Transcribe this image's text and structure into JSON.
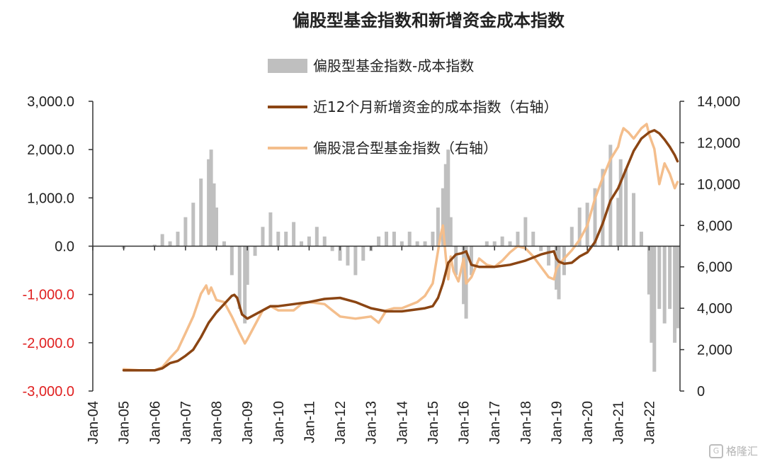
{
  "chart_data": {
    "type": "bar+line",
    "title": "偏股型基金指数和新增资金成本指数",
    "legend": {
      "placement": "top-center",
      "entries": [
        "偏股型基金指数-成本指数",
        "近12个月新增资金的成本指数（右轴）",
        "偏股混合型基金指数（右轴）"
      ]
    },
    "x_tick_labels": [
      "Jan-04",
      "Jan-05",
      "Jan-06",
      "Jan-07",
      "Jan-08",
      "Jan-09",
      "Jan-10",
      "Jan-11",
      "Jan-12",
      "Jan-13",
      "Jan-14",
      "Jan-15",
      "Jan-16",
      "Jan-17",
      "Jan-18",
      "Jan-19",
      "Jan-20",
      "Jan-21",
      "Jan-22"
    ],
    "x_range": [
      2004.0,
      2023.0
    ],
    "y_left": {
      "range": [
        -3000,
        3000
      ],
      "ticks": [
        3000,
        2000,
        1000,
        0,
        -1000,
        -2000,
        -3000
      ],
      "tick_labels": [
        "3,000.0",
        "2,000.0",
        "1,000.0",
        "0.0",
        "-1,000.0",
        "-2,000.0",
        "-3,000.0"
      ],
      "negative_label_color": "#e02020"
    },
    "y_right": {
      "range": [
        0,
        14000
      ],
      "ticks": [
        14000,
        12000,
        10000,
        8000,
        6000,
        4000,
        2000,
        0
      ],
      "tick_labels": [
        "14,000",
        "12,000",
        "10,000",
        "8,000",
        "6,000",
        "4,000",
        "2,000",
        "0"
      ]
    },
    "grid": false,
    "colors": {
      "bars": "#bfbfbf",
      "cost_index": "#8b4513",
      "fund_index": "#f4be8c"
    },
    "series": [
      {
        "name": "偏股型基金指数-成本指数",
        "type": "bar",
        "axis": "left",
        "x": [
          2005.0,
          2005.5,
          2006.0,
          2006.25,
          2006.5,
          2006.75,
          2007.0,
          2007.25,
          2007.5,
          2007.75,
          2007.83,
          2007.92,
          2008.0,
          2008.25,
          2008.5,
          2008.75,
          2008.92,
          2009.0,
          2009.25,
          2009.5,
          2009.75,
          2010.0,
          2010.25,
          2010.5,
          2010.75,
          2011.0,
          2011.25,
          2011.5,
          2011.75,
          2012.0,
          2012.25,
          2012.5,
          2012.75,
          2013.0,
          2013.25,
          2013.5,
          2013.75,
          2014.0,
          2014.25,
          2014.5,
          2014.75,
          2015.0,
          2015.17,
          2015.33,
          2015.42,
          2015.5,
          2015.58,
          2015.75,
          2016.0,
          2016.08,
          2016.25,
          2016.5,
          2016.75,
          2017.0,
          2017.25,
          2017.5,
          2017.75,
          2018.0,
          2018.25,
          2018.5,
          2018.75,
          2019.0,
          2019.08,
          2019.25,
          2019.5,
          2019.75,
          2020.0,
          2020.25,
          2020.5,
          2020.75,
          2021.0,
          2021.08,
          2021.25,
          2021.5,
          2021.75,
          2022.0,
          2022.08,
          2022.17,
          2022.33,
          2022.5,
          2022.67,
          2022.83,
          2022.92
        ],
        "values": [
          -50,
          0,
          30,
          250,
          100,
          300,
          600,
          900,
          1400,
          1800,
          2000,
          1300,
          800,
          100,
          -600,
          -1300,
          -1600,
          -800,
          -200,
          400,
          700,
          300,
          300,
          500,
          100,
          200,
          400,
          200,
          -100,
          -300,
          -400,
          -600,
          -300,
          -100,
          200,
          300,
          300,
          100,
          300,
          100,
          100,
          300,
          800,
          1200,
          1700,
          2000,
          600,
          -600,
          -1200,
          -1500,
          -600,
          0,
          100,
          100,
          200,
          100,
          300,
          600,
          300,
          -100,
          -400,
          -900,
          -1100,
          -600,
          400,
          800,
          900,
          1200,
          1600,
          2100,
          1000,
          1800,
          1600,
          1100,
          300,
          -1000,
          -2000,
          -2600,
          -1300,
          -1600,
          -1300,
          -2000,
          -1700
        ]
      },
      {
        "name": "近12个月新增资金的成本指数（右轴）",
        "type": "line",
        "axis": "right",
        "x": [
          2005.0,
          2005.5,
          2006.0,
          2006.25,
          2006.5,
          2006.75,
          2007.0,
          2007.25,
          2007.5,
          2007.75,
          2008.0,
          2008.25,
          2008.5,
          2008.58,
          2008.67,
          2008.83,
          2009.0,
          2009.25,
          2009.5,
          2009.75,
          2010.0,
          2010.5,
          2011.0,
          2011.5,
          2012.0,
          2012.5,
          2013.0,
          2013.5,
          2014.0,
          2014.5,
          2014.75,
          2015.0,
          2015.17,
          2015.33,
          2015.5,
          2015.75,
          2015.92,
          2016.0,
          2016.08,
          2016.25,
          2016.5,
          2017.0,
          2017.5,
          2018.0,
          2018.5,
          2018.75,
          2018.92,
          2019.0,
          2019.08,
          2019.25,
          2019.5,
          2019.75,
          2020.0,
          2020.25,
          2020.5,
          2020.75,
          2021.0,
          2021.25,
          2021.5,
          2021.75,
          2022.0,
          2022.17,
          2022.33,
          2022.5,
          2022.67,
          2022.83,
          2022.92
        ],
        "values": [
          1000,
          1000,
          1000,
          1100,
          1350,
          1450,
          1700,
          2000,
          2600,
          3300,
          3800,
          4200,
          4600,
          4650,
          4500,
          3700,
          3500,
          3700,
          3900,
          4100,
          4100,
          4200,
          4300,
          4450,
          4500,
          4300,
          4000,
          3850,
          3850,
          3950,
          4000,
          4100,
          4500,
          5200,
          6200,
          6600,
          6650,
          6700,
          6750,
          6100,
          6000,
          6000,
          6100,
          6300,
          6600,
          6700,
          6750,
          6400,
          6250,
          6150,
          6200,
          6500,
          6700,
          7200,
          8100,
          9200,
          9800,
          10700,
          11600,
          12200,
          12500,
          12600,
          12450,
          12150,
          11800,
          11400,
          11100
        ]
      },
      {
        "name": "偏股混合型基金指数（右轴）",
        "type": "line",
        "axis": "right",
        "x": [
          2005.0,
          2005.5,
          2006.0,
          2006.25,
          2006.5,
          2006.75,
          2007.0,
          2007.25,
          2007.5,
          2007.67,
          2007.75,
          2007.83,
          2008.0,
          2008.25,
          2008.5,
          2008.75,
          2008.92,
          2009.0,
          2009.25,
          2009.5,
          2009.75,
          2010.0,
          2010.5,
          2010.75,
          2011.0,
          2011.5,
          2011.75,
          2012.0,
          2012.5,
          2013.0,
          2013.25,
          2013.5,
          2013.75,
          2014.0,
          2014.5,
          2014.75,
          2015.0,
          2015.25,
          2015.33,
          2015.42,
          2015.5,
          2015.58,
          2015.67,
          2015.83,
          2016.0,
          2016.08,
          2016.25,
          2016.5,
          2016.75,
          2017.0,
          2017.25,
          2017.5,
          2017.75,
          2018.0,
          2018.25,
          2018.5,
          2018.75,
          2018.92,
          2019.0,
          2019.08,
          2019.25,
          2019.5,
          2019.75,
          2020.0,
          2020.25,
          2020.5,
          2020.75,
          2021.0,
          2021.08,
          2021.17,
          2021.33,
          2021.5,
          2021.75,
          2021.92,
          2022.0,
          2022.17,
          2022.33,
          2022.5,
          2022.67,
          2022.83,
          2022.92
        ],
        "values": [
          1050,
          1000,
          1000,
          1150,
          1600,
          2000,
          2800,
          3600,
          4700,
          5100,
          4700,
          5000,
          4400,
          4300,
          3600,
          2800,
          2300,
          2500,
          3200,
          3900,
          4100,
          3900,
          3900,
          4200,
          4300,
          4200,
          3900,
          3600,
          3500,
          3600,
          3300,
          3900,
          4000,
          4000,
          4300,
          4600,
          5200,
          7500,
          8000,
          6500,
          5400,
          6500,
          5800,
          5300,
          6400,
          5200,
          5500,
          6400,
          6100,
          6000,
          6300,
          6700,
          7000,
          6900,
          6500,
          6000,
          5500,
          5400,
          5900,
          6100,
          6400,
          6800,
          7300,
          8000,
          9300,
          10300,
          11200,
          11800,
          12300,
          12700,
          12500,
          12200,
          12700,
          12900,
          12400,
          11700,
          10000,
          11000,
          10500,
          9800,
          10100
        ]
      }
    ]
  },
  "watermark": {
    "logo": "G",
    "text": "格隆汇"
  }
}
